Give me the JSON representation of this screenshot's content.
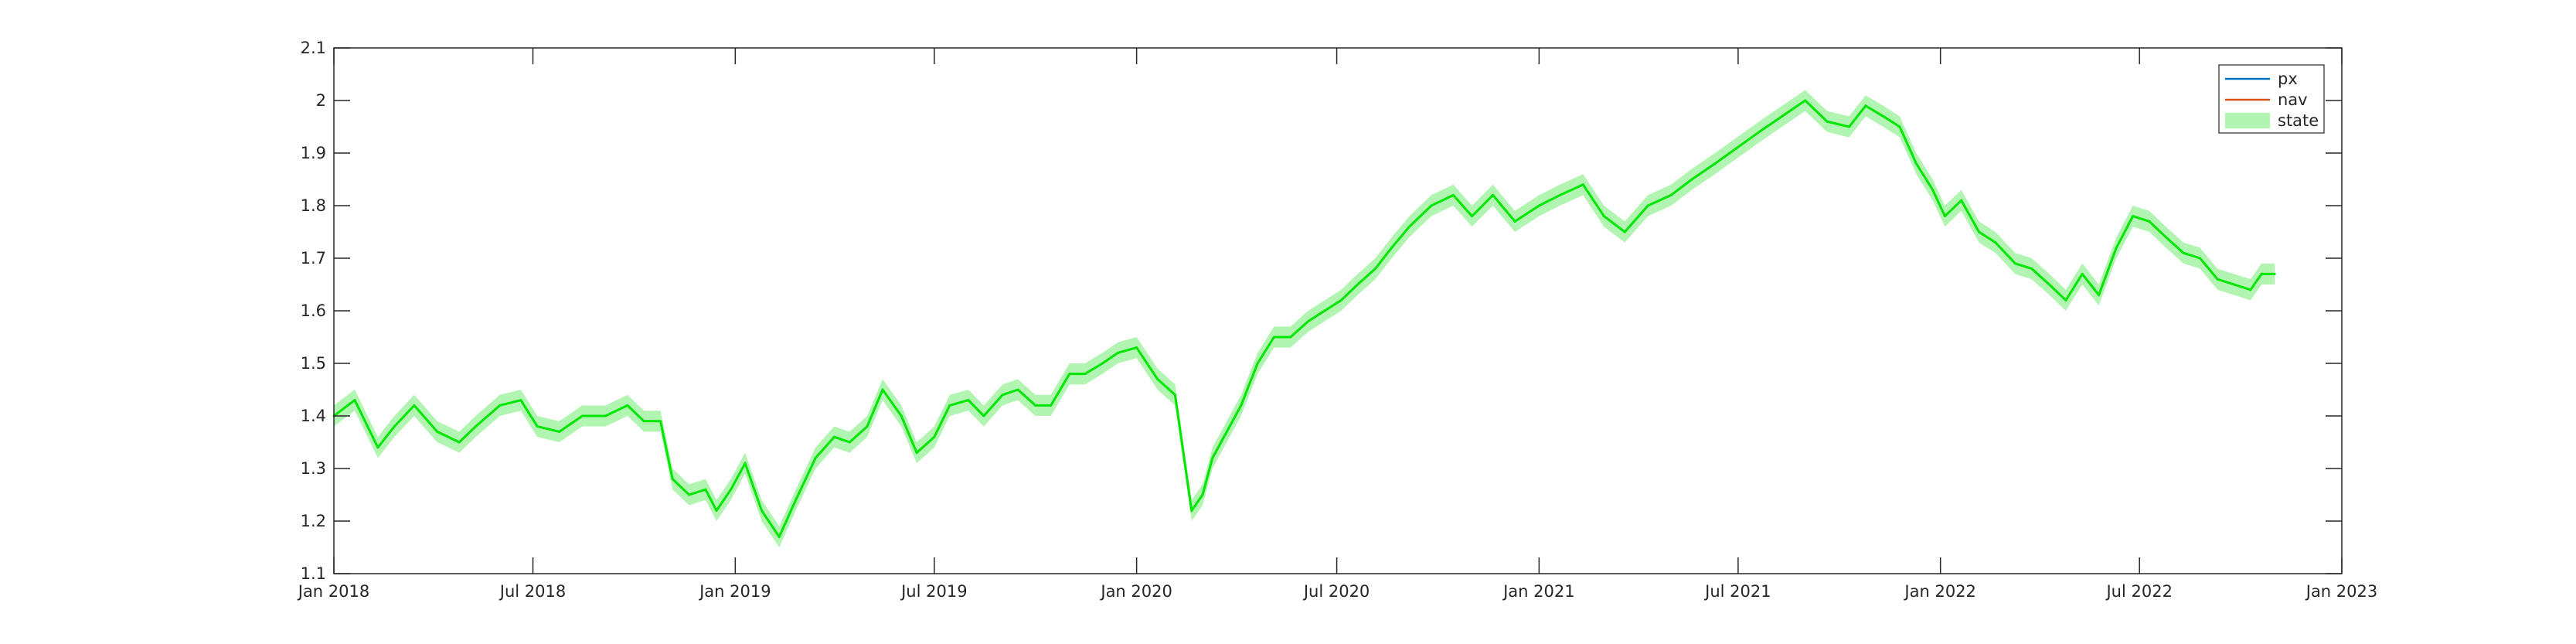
{
  "chart_data": {
    "type": "line",
    "title": "",
    "xlabel": "",
    "ylabel": "",
    "xlim": [
      "2018-01-01",
      "2023-01-01"
    ],
    "ylim": [
      1.1,
      2.1
    ],
    "x_ticks": [
      "Jan 2018",
      "Jul 2018",
      "Jan 2019",
      "Jul 2019",
      "Jan 2020",
      "Jul 2020",
      "Jan 2021",
      "Jul 2021",
      "Jan 2022",
      "Jul 2022",
      "Jan 2023"
    ],
    "x_tick_dates": [
      "2018-01-01",
      "2018-07-01",
      "2019-01-01",
      "2019-07-01",
      "2020-01-01",
      "2020-07-01",
      "2021-01-01",
      "2021-07-01",
      "2022-01-01",
      "2022-07-01",
      "2023-01-01"
    ],
    "y_ticks": [
      "1.1",
      "1.2",
      "1.3",
      "1.4",
      "1.5",
      "1.6",
      "1.7",
      "1.8",
      "1.9",
      "2",
      "2.1"
    ],
    "y_tick_values": [
      1.1,
      1.2,
      1.3,
      1.4,
      1.5,
      1.6,
      1.7,
      1.8,
      1.9,
      2.0,
      2.1
    ],
    "grid": false,
    "legend_position": "top-right",
    "legend": [
      "px",
      "nav",
      "state"
    ],
    "colors": {
      "px": "#0072bd",
      "nav": "#d95319",
      "state_line": "#00e600",
      "state_band": "#b2f5b2"
    },
    "band_half_width": 0.02,
    "x": [
      "2018-01-01",
      "2018-01-20",
      "2018-02-10",
      "2018-02-25",
      "2018-03-15",
      "2018-04-05",
      "2018-04-25",
      "2018-05-10",
      "2018-06-01",
      "2018-06-20",
      "2018-07-05",
      "2018-07-25",
      "2018-08-15",
      "2018-09-05",
      "2018-09-25",
      "2018-10-10",
      "2018-10-25",
      "2018-11-05",
      "2018-11-20",
      "2018-12-05",
      "2018-12-15",
      "2018-12-28",
      "2019-01-10",
      "2019-01-25",
      "2019-02-10",
      "2019-02-25",
      "2019-03-15",
      "2019-04-01",
      "2019-04-15",
      "2019-05-01",
      "2019-05-15",
      "2019-06-01",
      "2019-06-15",
      "2019-07-01",
      "2019-07-15",
      "2019-08-01",
      "2019-08-15",
      "2019-09-01",
      "2019-09-15",
      "2019-10-01",
      "2019-10-15",
      "2019-11-01",
      "2019-11-15",
      "2019-12-01",
      "2019-12-15",
      "2020-01-01",
      "2020-01-20",
      "2020-02-05",
      "2020-02-20",
      "2020-03-01",
      "2020-03-10",
      "2020-03-23",
      "2020-04-05",
      "2020-04-20",
      "2020-05-05",
      "2020-05-20",
      "2020-06-05",
      "2020-06-20",
      "2020-07-05",
      "2020-07-20",
      "2020-08-05",
      "2020-08-20",
      "2020-09-05",
      "2020-09-25",
      "2020-10-15",
      "2020-11-01",
      "2020-11-20",
      "2020-12-10",
      "2021-01-01",
      "2021-01-20",
      "2021-02-10",
      "2021-03-01",
      "2021-03-20",
      "2021-04-10",
      "2021-05-01",
      "2021-05-20",
      "2021-06-10",
      "2021-06-30",
      "2021-07-20",
      "2021-08-10",
      "2021-08-31",
      "2021-09-20",
      "2021-10-10",
      "2021-10-25",
      "2021-11-10",
      "2021-11-25",
      "2021-12-10",
      "2021-12-25",
      "2022-01-05",
      "2022-01-20",
      "2022-02-05",
      "2022-02-20",
      "2022-03-10",
      "2022-03-25",
      "2022-04-10",
      "2022-04-25",
      "2022-05-10",
      "2022-05-25",
      "2022-06-10",
      "2022-06-25",
      "2022-07-10",
      "2022-07-25",
      "2022-08-10",
      "2022-08-25",
      "2022-09-10",
      "2022-09-25",
      "2022-10-10",
      "2022-10-20",
      "2022-11-01"
    ],
    "series": [
      {
        "name": "state",
        "values": [
          1.4,
          1.43,
          1.34,
          1.38,
          1.42,
          1.37,
          1.35,
          1.38,
          1.42,
          1.43,
          1.38,
          1.37,
          1.4,
          1.4,
          1.42,
          1.39,
          1.39,
          1.28,
          1.25,
          1.26,
          1.22,
          1.26,
          1.31,
          1.22,
          1.17,
          1.24,
          1.32,
          1.36,
          1.35,
          1.38,
          1.45,
          1.4,
          1.33,
          1.36,
          1.42,
          1.43,
          1.4,
          1.44,
          1.45,
          1.42,
          1.42,
          1.48,
          1.48,
          1.5,
          1.52,
          1.53,
          1.47,
          1.44,
          1.22,
          1.25,
          1.32,
          1.37,
          1.42,
          1.5,
          1.55,
          1.55,
          1.58,
          1.6,
          1.62,
          1.65,
          1.68,
          1.72,
          1.76,
          1.8,
          1.82,
          1.78,
          1.82,
          1.77,
          1.8,
          1.82,
          1.84,
          1.78,
          1.75,
          1.8,
          1.82,
          1.85,
          1.88,
          1.91,
          1.94,
          1.97,
          2.0,
          1.96,
          1.95,
          1.99,
          1.97,
          1.95,
          1.88,
          1.83,
          1.78,
          1.81,
          1.75,
          1.73,
          1.69,
          1.68,
          1.65,
          1.62,
          1.67,
          1.63,
          1.72,
          1.78,
          1.77,
          1.74,
          1.71,
          1.7,
          1.66,
          1.65,
          1.64,
          1.67,
          1.67
        ]
      }
    ]
  }
}
